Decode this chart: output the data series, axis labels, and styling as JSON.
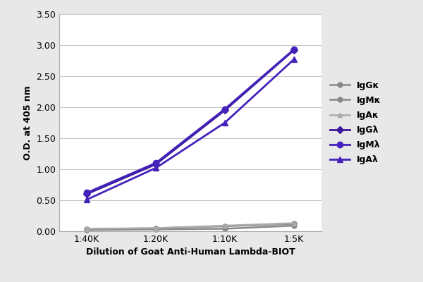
{
  "x_labels": [
    "1:40K",
    "1:20K",
    "1:10K",
    "1:5K"
  ],
  "x_positions": [
    0,
    1,
    2,
    3
  ],
  "series": [
    {
      "name": "IgGκ",
      "values": [
        0.03,
        0.05,
        0.08,
        0.12
      ],
      "color": "#888888",
      "marker": "o",
      "markersize": 5,
      "linewidth": 1.8,
      "zorder": 2
    },
    {
      "name": "IgMκ",
      "values": [
        0.02,
        0.03,
        0.04,
        0.09
      ],
      "color": "#888888",
      "marker": "o",
      "markersize": 5,
      "linewidth": 1.8,
      "zorder": 2
    },
    {
      "name": "IgAκ",
      "values": [
        0.04,
        0.05,
        0.09,
        0.13
      ],
      "color": "#aaaaaa",
      "marker": "^",
      "markersize": 5,
      "linewidth": 1.8,
      "zorder": 2
    },
    {
      "name": "IgGλ",
      "values": [
        0.6,
        1.08,
        1.95,
        2.92
      ],
      "color": "#3a189a",
      "marker": "D",
      "markersize": 5,
      "linewidth": 2.0,
      "zorder": 3
    },
    {
      "name": "IgMλ",
      "values": [
        0.62,
        1.1,
        1.97,
        2.93
      ],
      "color": "#4422bb",
      "marker": "o",
      "markersize": 6,
      "linewidth": 2.0,
      "zorder": 4
    },
    {
      "name": "IgAλ",
      "values": [
        0.51,
        1.02,
        1.75,
        2.77
      ],
      "color": "#4422bb",
      "marker": "^",
      "markersize": 6,
      "linewidth": 2.0,
      "zorder": 3
    }
  ],
  "ylabel": "O.D. at 405 nm",
  "xlabel": "Dilution of Goat Anti-Human Lambda-BIOT",
  "ylim": [
    0.0,
    3.5
  ],
  "yticks": [
    0.0,
    0.5,
    1.0,
    1.5,
    2.0,
    2.5,
    3.0,
    3.5
  ],
  "fig_bg_color": "#e8e8e8",
  "plot_bg_color": "#ffffff",
  "grid_color": "#c8c8c8",
  "label_fontsize": 9,
  "tick_fontsize": 9,
  "legend_fontsize": 9
}
